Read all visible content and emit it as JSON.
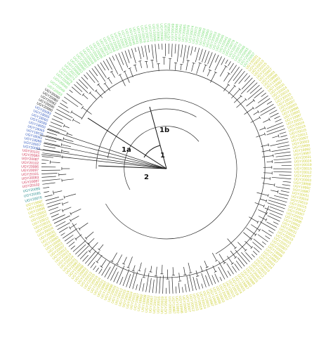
{
  "clade_labels": {
    "c1": "1",
    "c1a": "1a",
    "c1b": "1b",
    "c2": "2"
  },
  "colors": {
    "green": "#7ee07a",
    "yellow": "#cfd23a",
    "red": "#d23a5a",
    "blue": "#3a5fc0",
    "black": "#222222",
    "teal": "#2f8f8f"
  },
  "tip_label_prefix": "UGY",
  "tip_groups": [
    {
      "color": "green",
      "count": 48,
      "labels": [
        "UGY20085",
        "UGY20079",
        "UGY20074",
        "UGY20072",
        "UGY20068",
        "UGY20063",
        "UGY20060",
        "UGY20057",
        "UGY20053",
        "UGY20049",
        "UGY20046",
        "UGY20041"
      ]
    },
    {
      "color": "yellow",
      "count": 120,
      "labels": [
        "UGY20031",
        "UGY20024",
        "UGY20019",
        "UGY20015",
        "UGY20012",
        "UGY20007",
        "UGY20003",
        "UGY19998",
        "UGY19992",
        "UGY19987"
      ]
    },
    {
      "color": "black",
      "count": 3,
      "labels": [
        "UGY20080",
        "UGY20090",
        "UGY20092"
      ]
    },
    {
      "color": "blue",
      "count": 10,
      "labels": [
        "UGY20093",
        "UGY18007",
        "UGY18098",
        "UGY18081",
        "UGY18076",
        "UGY18069",
        "UGY18050",
        "UGY18089",
        "UGY18060",
        "UGY18065"
      ]
    },
    {
      "color": "red",
      "count": 6,
      "labels": [
        "UGY20102",
        "UGY20087",
        "UGY20083",
        "UGY20101",
        "UGY20097",
        "UGY20086"
      ]
    },
    {
      "color": "teal",
      "count": 3,
      "labels": [
        "UGY20076",
        "UGY20081",
        "UGY20055"
      ]
    }
  ]
}
